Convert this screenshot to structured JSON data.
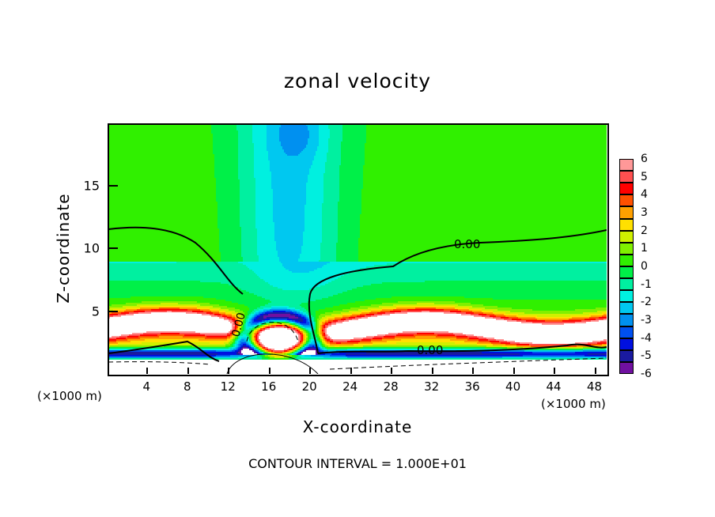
{
  "chart_data": {
    "type": "heatmap",
    "title": "zonal velocity",
    "xlabel": "X-coordinate",
    "ylabel": "Z-coordinate",
    "x_unit_label": "(×1000 m)",
    "xlim": [
      0.25,
      49.2
    ],
    "ylim": [
      0,
      19.9
    ],
    "xticks": [
      4,
      8,
      12,
      16,
      20,
      24,
      28,
      32,
      36,
      40,
      44,
      48
    ],
    "yticks": [
      5,
      10,
      15
    ],
    "colorbar": {
      "ticks": [
        6,
        5,
        4,
        3,
        2,
        1,
        0,
        -1,
        -2,
        -3,
        -4,
        -5,
        -6
      ],
      "range": [
        -6,
        6
      ],
      "colors": [
        "#7010a0",
        "#1a1aa0",
        "#0010e0",
        "#0050f0",
        "#0090f0",
        "#00c8f0",
        "#00f0e0",
        "#00f0a0",
        "#00f048",
        "#30f000",
        "#80f000",
        "#d0f000",
        "#ffe000",
        "#ffa000",
        "#ff5000",
        "#ff0000",
        "#ff5050",
        "#ff9898"
      ],
      "out_of_range_color": "#ffffff"
    },
    "contour_labels": [
      "0.00",
      "0.00",
      "0.00"
    ],
    "contour_interval_text": "CONTOUR INTERVAL = 1.000E+01"
  }
}
